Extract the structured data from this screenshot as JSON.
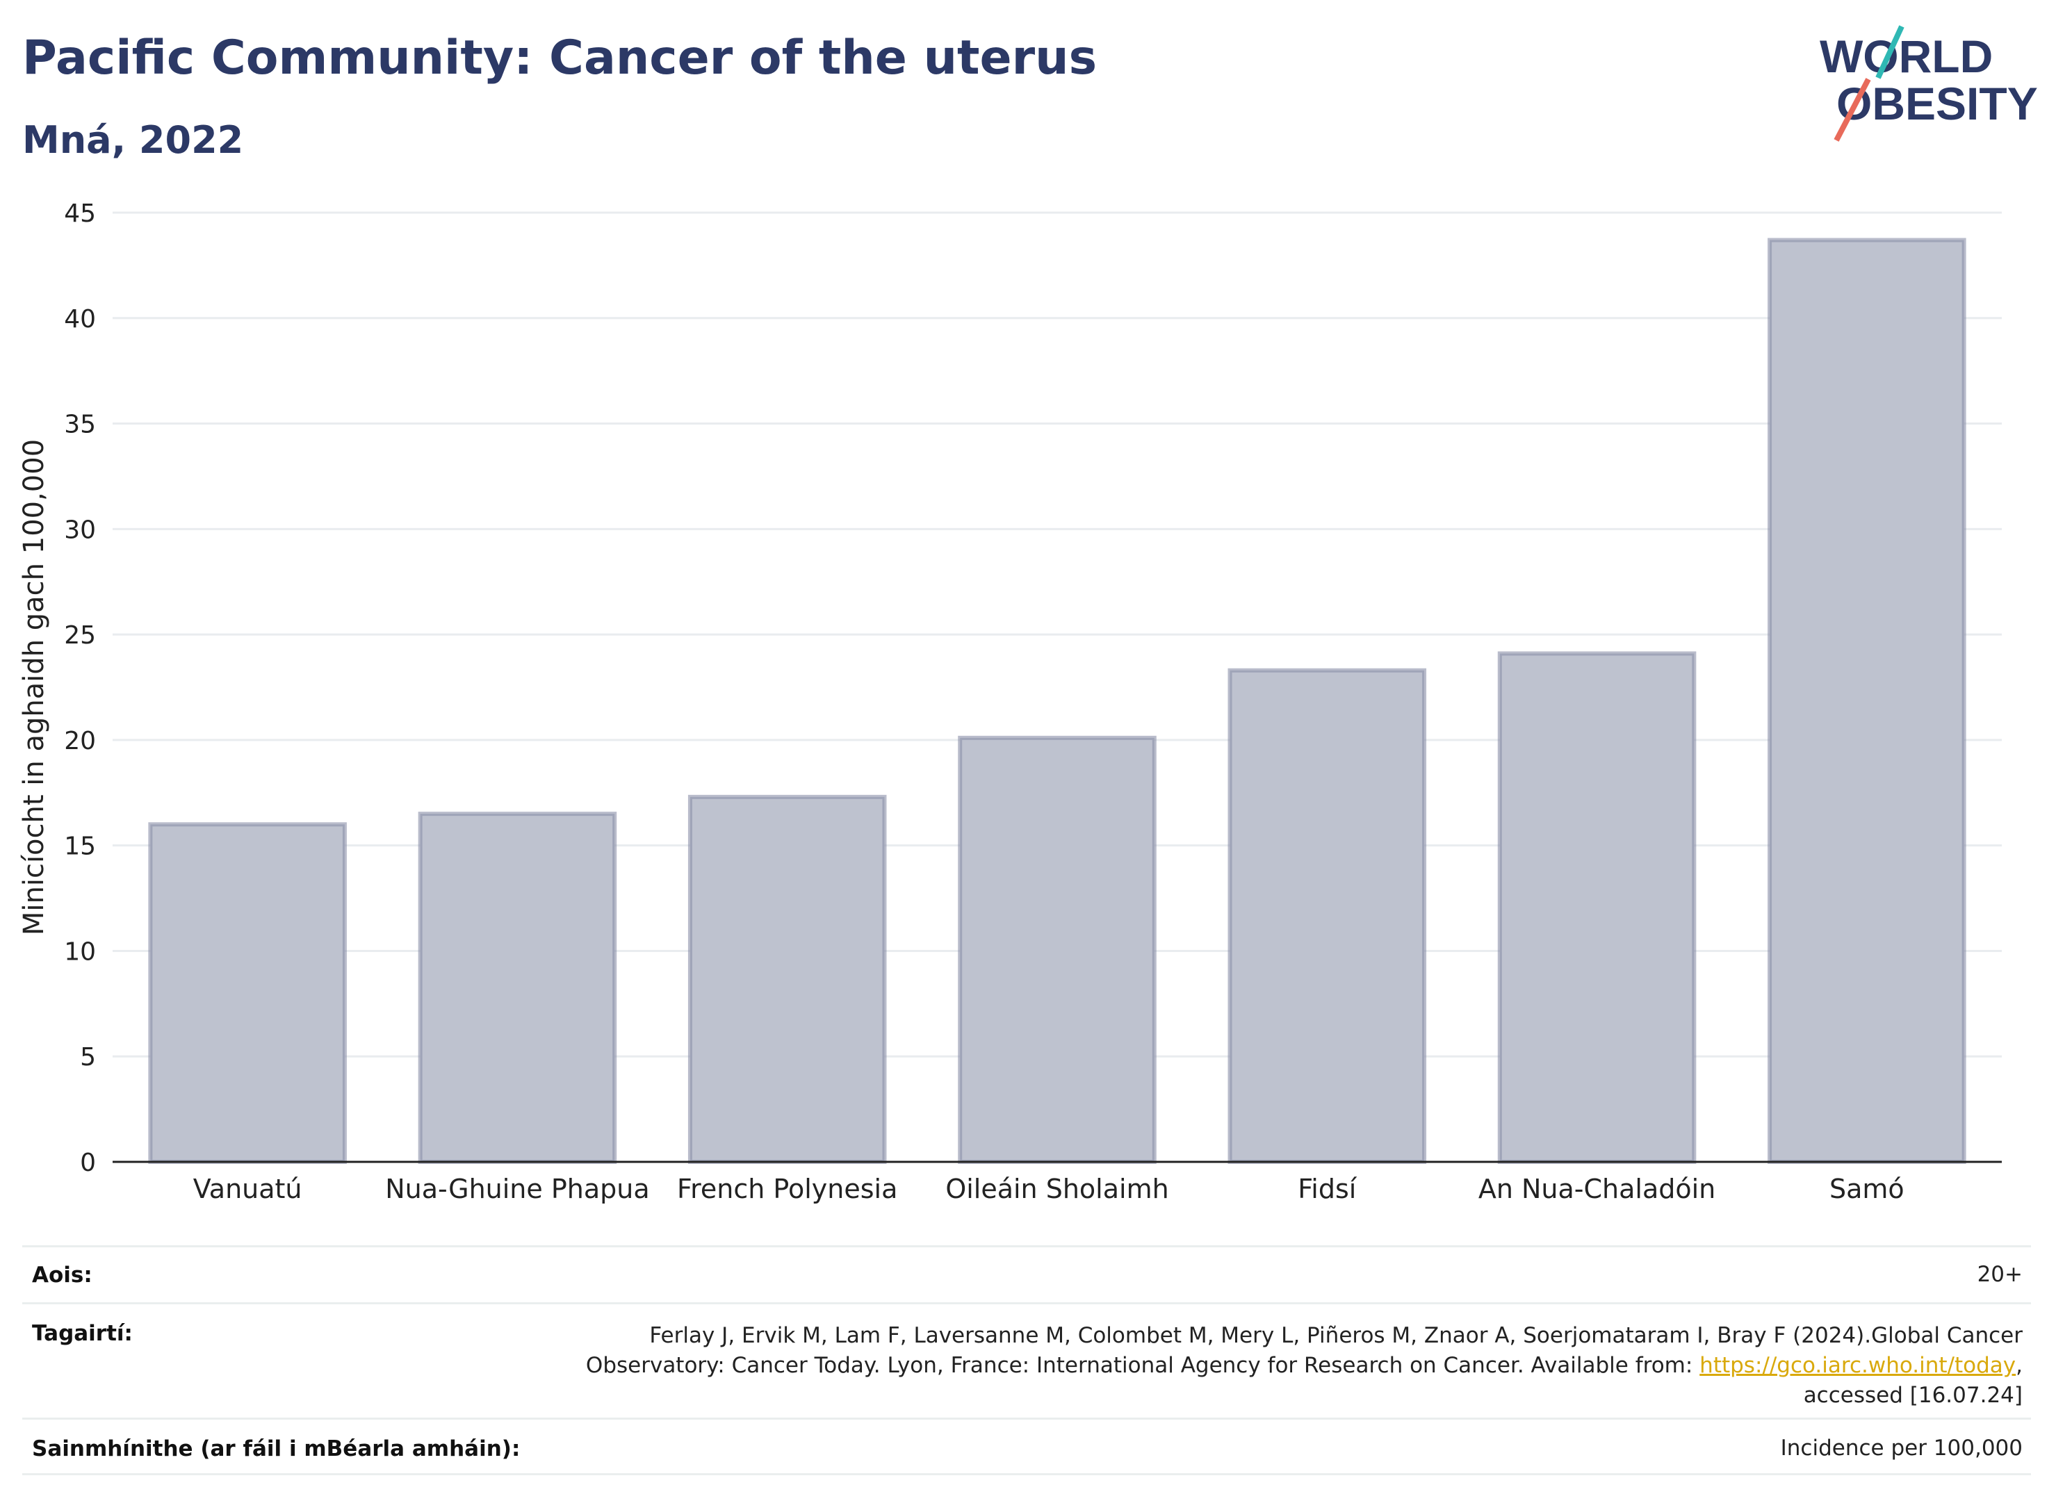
{
  "header": {
    "title": "Pacific Community: Cancer of the uterus",
    "subtitle": "Mná, 2022"
  },
  "logo": {
    "line1": "WORLD",
    "line2": "OBESITY",
    "accent_teal": "#2fb8b4",
    "accent_coral": "#e86a5a",
    "text_color": "#2c3966"
  },
  "chart_data": {
    "type": "bar",
    "categories": [
      "Vanuatú",
      "Nua-Ghuine Phapua",
      "French Polynesia",
      "Oileáin Sholaimh",
      "Fidsí",
      "An Nua-Chaladóin",
      "Samó"
    ],
    "values": [
      16.0,
      16.5,
      17.3,
      20.1,
      23.3,
      24.1,
      43.7
    ],
    "xlabel": "",
    "ylabel": "Minicíocht in aghaidh gach 100,000",
    "ylim": [
      0,
      45
    ],
    "yticks": [
      0,
      5,
      10,
      15,
      20,
      25,
      30,
      35,
      40,
      45
    ],
    "grid": true,
    "bar_fill": "#bec2cf",
    "bar_stroke": "#8a8fa8"
  },
  "meta": {
    "age": {
      "label": "Aois:",
      "value": "20+"
    },
    "references": {
      "label": "Tagairtí:",
      "line1": "Ferlay J, Ervik M, Lam F, Laversanne M, Colombet M, Mery L, Piñeros M, Znaor A, Soerjomataram I, Bray F (2024).Global Cancer",
      "line2_prefix": "Observatory: Cancer Today. Lyon, France: International Agency for Research on Cancer. Available from: ",
      "link_text": "https://gco.iarc.who.int/today",
      "line2_suffix": ",",
      "line3": "accessed [16.07.24]"
    },
    "definitions": {
      "label": "Sainmhínithe (ar fáil i mBéarla amháin):",
      "value": "Incidence per 100,000"
    }
  }
}
